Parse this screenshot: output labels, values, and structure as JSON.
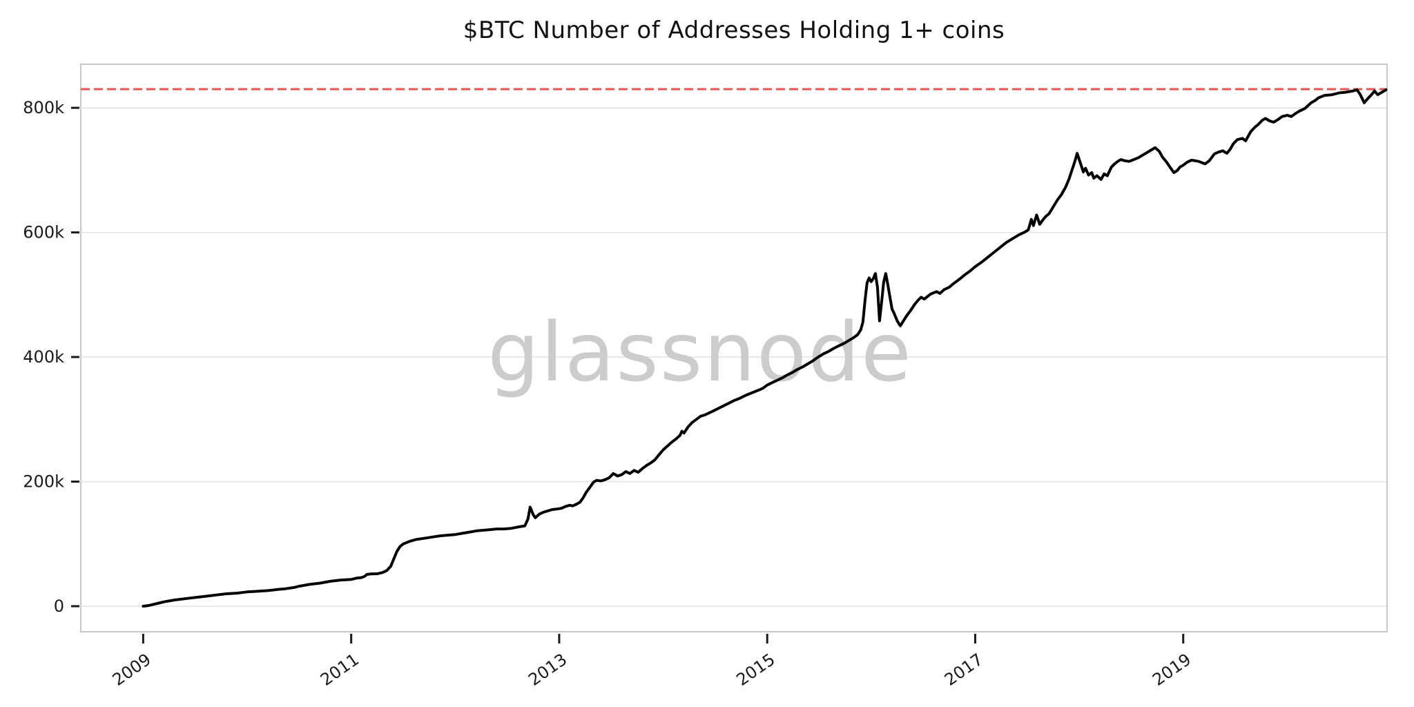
{
  "watermark": "glassnode",
  "style": {
    "background": "#ffffff",
    "line_color": "#000000",
    "grid_color": "#e2e2e2",
    "border_color": "#c9c9c9",
    "tick_color": "#1a1a1a",
    "text_color": "#111111",
    "watermark_color": "#cccccc",
    "reference_red": "#f0534f"
  },
  "chart_data": {
    "type": "line",
    "title": "$BTC Number of Addresses Holding 1+ coins",
    "xlabel": "",
    "ylabel": "",
    "legend": "none",
    "grid": "horizontal",
    "x_axis": {
      "ticks": [
        2009,
        2011,
        2013,
        2015,
        2017,
        2019
      ],
      "labels": [
        "2009",
        "2011",
        "2013",
        "2015",
        "2017",
        "2019"
      ],
      "range": [
        2008.4,
        2020.96
      ],
      "label_rotation_deg": -35
    },
    "y_axis": {
      "ticks": [
        0,
        200,
        400,
        600,
        800
      ],
      "labels": [
        "0",
        "200k",
        "400k",
        "600k",
        "800k"
      ],
      "range": [
        -41,
        870
      ],
      "unit": "thousand addresses"
    },
    "reference_line": {
      "value": 830,
      "style": "dashed",
      "color": "#f0534f",
      "meaning": "all-time-high level touched by the curve at the right edge"
    },
    "series": [
      {
        "name": "btc-addresses-holding-1plus-coins",
        "color": "#000000",
        "unit": "k",
        "points": [
          [
            2009.0,
            0
          ],
          [
            2009.05,
            1
          ],
          [
            2009.1,
            3
          ],
          [
            2009.15,
            5
          ],
          [
            2009.2,
            7
          ],
          [
            2009.3,
            10
          ],
          [
            2009.4,
            12
          ],
          [
            2009.5,
            14
          ],
          [
            2009.6,
            16
          ],
          [
            2009.7,
            18
          ],
          [
            2009.8,
            20
          ],
          [
            2009.9,
            21
          ],
          [
            2010.0,
            23
          ],
          [
            2010.1,
            24
          ],
          [
            2010.2,
            25
          ],
          [
            2010.3,
            27
          ],
          [
            2010.37,
            28
          ],
          [
            2010.45,
            30
          ],
          [
            2010.5,
            32
          ],
          [
            2010.6,
            35
          ],
          [
            2010.7,
            37
          ],
          [
            2010.8,
            40
          ],
          [
            2010.9,
            42
          ],
          [
            2011.0,
            43
          ],
          [
            2011.05,
            45
          ],
          [
            2011.1,
            46
          ],
          [
            2011.13,
            48
          ],
          [
            2011.15,
            51
          ],
          [
            2011.2,
            52
          ],
          [
            2011.25,
            52
          ],
          [
            2011.3,
            54
          ],
          [
            2011.34,
            57
          ],
          [
            2011.38,
            64
          ],
          [
            2011.41,
            76
          ],
          [
            2011.44,
            88
          ],
          [
            2011.47,
            96
          ],
          [
            2011.5,
            100
          ],
          [
            2011.56,
            104
          ],
          [
            2011.62,
            107
          ],
          [
            2011.7,
            109
          ],
          [
            2011.78,
            111
          ],
          [
            2011.86,
            113
          ],
          [
            2011.93,
            114
          ],
          [
            2012.0,
            115
          ],
          [
            2012.07,
            117
          ],
          [
            2012.14,
            119
          ],
          [
            2012.21,
            121
          ],
          [
            2012.28,
            122
          ],
          [
            2012.34,
            123
          ],
          [
            2012.4,
            124
          ],
          [
            2012.47,
            124
          ],
          [
            2012.54,
            125
          ],
          [
            2012.6,
            127
          ],
          [
            2012.67,
            129
          ],
          [
            2012.7,
            140
          ],
          [
            2012.72,
            159
          ],
          [
            2012.75,
            147
          ],
          [
            2012.77,
            142
          ],
          [
            2012.81,
            148
          ],
          [
            2012.85,
            151
          ],
          [
            2012.89,
            153
          ],
          [
            2012.93,
            155
          ],
          [
            2012.98,
            156
          ],
          [
            2013.02,
            157
          ],
          [
            2013.06,
            160
          ],
          [
            2013.1,
            162
          ],
          [
            2013.13,
            161
          ],
          [
            2013.17,
            164
          ],
          [
            2013.2,
            167
          ],
          [
            2013.23,
            174
          ],
          [
            2013.26,
            183
          ],
          [
            2013.3,
            192
          ],
          [
            2013.33,
            199
          ],
          [
            2013.36,
            202
          ],
          [
            2013.4,
            201
          ],
          [
            2013.44,
            203
          ],
          [
            2013.48,
            206
          ],
          [
            2013.52,
            213
          ],
          [
            2013.56,
            209
          ],
          [
            2013.6,
            211
          ],
          [
            2013.64,
            216
          ],
          [
            2013.68,
            213
          ],
          [
            2013.72,
            218
          ],
          [
            2013.76,
            215
          ],
          [
            2013.8,
            221
          ],
          [
            2013.84,
            226
          ],
          [
            2013.88,
            230
          ],
          [
            2013.92,
            235
          ],
          [
            2013.96,
            243
          ],
          [
            2014.0,
            251
          ],
          [
            2014.04,
            257
          ],
          [
            2014.08,
            263
          ],
          [
            2014.12,
            268
          ],
          [
            2014.16,
            274
          ],
          [
            2014.18,
            281
          ],
          [
            2014.2,
            278
          ],
          [
            2014.24,
            288
          ],
          [
            2014.28,
            295
          ],
          [
            2014.32,
            300
          ],
          [
            2014.36,
            305
          ],
          [
            2014.4,
            307
          ],
          [
            2014.45,
            311
          ],
          [
            2014.5,
            315
          ],
          [
            2014.56,
            320
          ],
          [
            2014.62,
            325
          ],
          [
            2014.68,
            330
          ],
          [
            2014.74,
            334
          ],
          [
            2014.8,
            339
          ],
          [
            2014.86,
            343
          ],
          [
            2014.92,
            347
          ],
          [
            2014.96,
            350
          ],
          [
            2015.0,
            355
          ],
          [
            2015.05,
            359
          ],
          [
            2015.1,
            363
          ],
          [
            2015.15,
            367
          ],
          [
            2015.19,
            371
          ],
          [
            2015.24,
            375
          ],
          [
            2015.29,
            380
          ],
          [
            2015.34,
            384
          ],
          [
            2015.39,
            389
          ],
          [
            2015.44,
            394
          ],
          [
            2015.49,
            400
          ],
          [
            2015.54,
            405
          ],
          [
            2015.59,
            409
          ],
          [
            2015.64,
            414
          ],
          [
            2015.69,
            418
          ],
          [
            2015.74,
            422
          ],
          [
            2015.79,
            427
          ],
          [
            2015.83,
            431
          ],
          [
            2015.87,
            436
          ],
          [
            2015.9,
            444
          ],
          [
            2015.92,
            456
          ],
          [
            2015.94,
            490
          ],
          [
            2015.96,
            519
          ],
          [
            2015.98,
            527
          ],
          [
            2016.0,
            521
          ],
          [
            2016.02,
            526
          ],
          [
            2016.04,
            534
          ],
          [
            2016.06,
            512
          ],
          [
            2016.08,
            458
          ],
          [
            2016.1,
            488
          ],
          [
            2016.12,
            520
          ],
          [
            2016.14,
            534
          ],
          [
            2016.16,
            516
          ],
          [
            2016.18,
            496
          ],
          [
            2016.2,
            477
          ],
          [
            2016.22,
            470
          ],
          [
            2016.25,
            458
          ],
          [
            2016.28,
            450
          ],
          [
            2016.31,
            458
          ],
          [
            2016.34,
            466
          ],
          [
            2016.38,
            475
          ],
          [
            2016.42,
            485
          ],
          [
            2016.45,
            491
          ],
          [
            2016.48,
            496
          ],
          [
            2016.51,
            493
          ],
          [
            2016.54,
            497
          ],
          [
            2016.57,
            501
          ],
          [
            2016.6,
            503
          ],
          [
            2016.63,
            505
          ],
          [
            2016.66,
            502
          ],
          [
            2016.7,
            508
          ],
          [
            2016.75,
            512
          ],
          [
            2016.8,
            519
          ],
          [
            2016.85,
            525
          ],
          [
            2016.9,
            532
          ],
          [
            2016.95,
            538
          ],
          [
            2017.0,
            545
          ],
          [
            2017.06,
            552
          ],
          [
            2017.12,
            560
          ],
          [
            2017.18,
            568
          ],
          [
            2017.24,
            576
          ],
          [
            2017.3,
            584
          ],
          [
            2017.36,
            590
          ],
          [
            2017.42,
            596
          ],
          [
            2017.47,
            600
          ],
          [
            2017.51,
            604
          ],
          [
            2017.54,
            621
          ],
          [
            2017.56,
            611
          ],
          [
            2017.59,
            628
          ],
          [
            2017.62,
            613
          ],
          [
            2017.65,
            620
          ],
          [
            2017.68,
            626
          ],
          [
            2017.71,
            630
          ],
          [
            2017.75,
            641
          ],
          [
            2017.79,
            652
          ],
          [
            2017.83,
            661
          ],
          [
            2017.87,
            673
          ],
          [
            2017.9,
            685
          ],
          [
            2017.93,
            700
          ],
          [
            2017.96,
            715
          ],
          [
            2017.98,
            727
          ],
          [
            2018.01,
            712
          ],
          [
            2018.04,
            697
          ],
          [
            2018.06,
            703
          ],
          [
            2018.09,
            692
          ],
          [
            2018.12,
            696
          ],
          [
            2018.14,
            687
          ],
          [
            2018.17,
            691
          ],
          [
            2018.21,
            685
          ],
          [
            2018.24,
            694
          ],
          [
            2018.27,
            691
          ],
          [
            2018.31,
            705
          ],
          [
            2018.34,
            710
          ],
          [
            2018.37,
            714
          ],
          [
            2018.4,
            717
          ],
          [
            2018.44,
            715
          ],
          [
            2018.48,
            714
          ],
          [
            2018.51,
            716
          ],
          [
            2018.57,
            720
          ],
          [
            2018.61,
            724
          ],
          [
            2018.64,
            727
          ],
          [
            2018.68,
            731
          ],
          [
            2018.73,
            736
          ],
          [
            2018.77,
            730
          ],
          [
            2018.8,
            721
          ],
          [
            2018.84,
            713
          ],
          [
            2018.88,
            703
          ],
          [
            2018.91,
            696
          ],
          [
            2018.94,
            699
          ],
          [
            2018.97,
            705
          ],
          [
            2019.0,
            708
          ],
          [
            2019.04,
            713
          ],
          [
            2019.08,
            716
          ],
          [
            2019.12,
            715
          ],
          [
            2019.15,
            714
          ],
          [
            2019.18,
            712
          ],
          [
            2019.21,
            710
          ],
          [
            2019.25,
            715
          ],
          [
            2019.3,
            726
          ],
          [
            2019.34,
            729
          ],
          [
            2019.38,
            731
          ],
          [
            2019.42,
            727
          ],
          [
            2019.45,
            733
          ],
          [
            2019.48,
            742
          ],
          [
            2019.52,
            749
          ],
          [
            2019.57,
            751
          ],
          [
            2019.6,
            747
          ],
          [
            2019.65,
            762
          ],
          [
            2019.69,
            769
          ],
          [
            2019.72,
            773
          ],
          [
            2019.76,
            780
          ],
          [
            2019.79,
            783
          ],
          [
            2019.83,
            779
          ],
          [
            2019.87,
            777
          ],
          [
            2019.91,
            781
          ],
          [
            2019.95,
            786
          ],
          [
            2020.0,
            788
          ],
          [
            2020.04,
            786
          ],
          [
            2020.08,
            791
          ],
          [
            2020.12,
            795
          ],
          [
            2020.17,
            799
          ],
          [
            2020.23,
            808
          ],
          [
            2020.27,
            812
          ],
          [
            2020.3,
            816
          ],
          [
            2020.36,
            820
          ],
          [
            2020.43,
            821
          ],
          [
            2020.5,
            824
          ],
          [
            2020.56,
            825
          ],
          [
            2020.63,
            827
          ],
          [
            2020.67,
            829
          ],
          [
            2020.7,
            822
          ],
          [
            2020.74,
            808
          ],
          [
            2020.77,
            814
          ],
          [
            2020.81,
            821
          ],
          [
            2020.84,
            827
          ],
          [
            2020.87,
            821
          ],
          [
            2020.9,
            824
          ],
          [
            2020.95,
            829
          ]
        ]
      }
    ]
  }
}
